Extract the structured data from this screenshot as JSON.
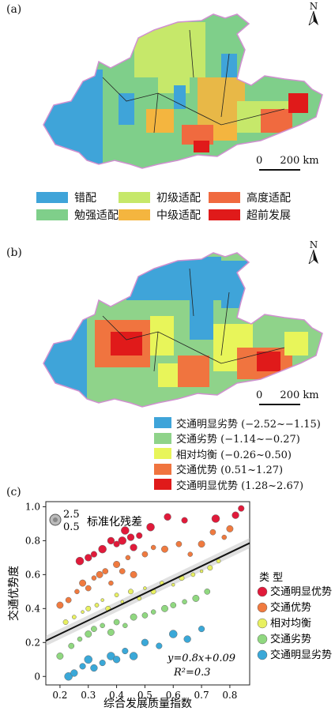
{
  "panel_a": {
    "label": "(a)",
    "north": "N",
    "scale": {
      "zero": "0",
      "text": "200 km"
    },
    "legend": [
      {
        "label": "错配",
        "color": "#3fa4d9"
      },
      {
        "label": "初级适配",
        "color": "#c6e86a"
      },
      {
        "label": "高度适配",
        "color": "#f06a3f"
      },
      {
        "label": "勉强适配",
        "color": "#7fcf8a"
      },
      {
        "label": "中级适配",
        "color": "#f4b53f"
      },
      {
        "label": "超前发展",
        "color": "#e01a1a"
      }
    ]
  },
  "panel_b": {
    "label": "(b)",
    "north": "N",
    "scale": {
      "zero": "0",
      "text": "200 km"
    },
    "legend": [
      {
        "label": "交通明显劣势 (−2.52~−1.15)",
        "color": "#3fa4d9"
      },
      {
        "label": "交通劣势 (−1.14~−0.27)",
        "color": "#8fd38a"
      },
      {
        "label": "相对均衡 (−0.26~0.50)",
        "color": "#e8f55a"
      },
      {
        "label": "交通优势 (0.51~1.27)",
        "color": "#f0743f"
      },
      {
        "label": "交通明显优势 (1.28~2.67)",
        "color": "#e01a1a"
      }
    ]
  },
  "panel_c": {
    "label": "(c)",
    "size_legend": {
      "big": "2.5",
      "small": "0.5",
      "title": "标准化残差"
    },
    "equation": "y=0.8x+0.09",
    "r2": "R²=0.3",
    "legend_title": "类  型",
    "legend": [
      {
        "label": "交通明显优势",
        "color": "#e01a3a"
      },
      {
        "label": "交通优势",
        "color": "#f07a3f"
      },
      {
        "label": "相对均衡",
        "color": "#e8f060"
      },
      {
        "label": "交通劣势",
        "color": "#90d880"
      },
      {
        "label": "交通明显劣势",
        "color": "#3aa8d8"
      }
    ]
  },
  "chart_data": {
    "type": "scatter",
    "xlabel": "综合发展质量指数",
    "ylabel": "交通优势度",
    "xlim": [
      0.15,
      0.87
    ],
    "ylim": [
      -0.05,
      1.03
    ],
    "xticks": [
      "0.2",
      "0.3",
      "0.4",
      "0.5",
      "0.6",
      "0.7",
      "0.8"
    ],
    "yticks": [
      "0",
      "0.2",
      "0.4",
      "0.6",
      "0.8",
      "1.0"
    ],
    "regression": {
      "slope": 0.8,
      "intercept": 0.09
    },
    "series": [
      {
        "name": "交通明显优势",
        "color": "#e01a3a",
        "x": [
          0.27,
          0.3,
          0.32,
          0.35,
          0.38,
          0.4,
          0.42,
          0.45,
          0.48,
          0.52,
          0.58,
          0.64,
          0.75,
          0.82,
          0.84,
          0.43,
          0.46
        ],
        "y": [
          0.68,
          0.7,
          0.72,
          0.75,
          0.8,
          0.78,
          0.8,
          0.82,
          0.83,
          0.88,
          0.94,
          0.92,
          0.93,
          0.95,
          0.99,
          0.86,
          0.76
        ]
      },
      {
        "name": "交通优势",
        "color": "#f07a3f",
        "x": [
          0.2,
          0.23,
          0.26,
          0.28,
          0.3,
          0.32,
          0.34,
          0.36,
          0.38,
          0.4,
          0.42,
          0.44,
          0.46,
          0.5,
          0.53,
          0.57,
          0.62,
          0.66,
          0.7,
          0.74,
          0.78,
          0.8
        ],
        "y": [
          0.42,
          0.45,
          0.5,
          0.55,
          0.52,
          0.58,
          0.6,
          0.62,
          0.55,
          0.66,
          0.62,
          0.7,
          0.6,
          0.72,
          0.76,
          0.75,
          0.78,
          0.72,
          0.78,
          0.85,
          0.82,
          0.87
        ]
      },
      {
        "name": "相对均衡",
        "color": "#e8f060",
        "x": [
          0.22,
          0.25,
          0.28,
          0.3,
          0.33,
          0.35,
          0.37,
          0.4,
          0.42,
          0.45,
          0.48,
          0.5,
          0.53,
          0.56,
          0.6,
          0.63,
          0.67,
          0.7,
          0.73,
          0.76
        ],
        "y": [
          0.32,
          0.35,
          0.38,
          0.4,
          0.42,
          0.45,
          0.4,
          0.48,
          0.44,
          0.5,
          0.46,
          0.52,
          0.5,
          0.55,
          0.54,
          0.58,
          0.6,
          0.62,
          0.64,
          0.68
        ]
      },
      {
        "name": "交通劣势",
        "color": "#90d880",
        "x": [
          0.2,
          0.24,
          0.27,
          0.3,
          0.32,
          0.35,
          0.38,
          0.4,
          0.43,
          0.46,
          0.5,
          0.53,
          0.57,
          0.6,
          0.64,
          0.68,
          0.72
        ],
        "y": [
          0.12,
          0.18,
          0.22,
          0.25,
          0.28,
          0.3,
          0.26,
          0.32,
          0.3,
          0.35,
          0.36,
          0.38,
          0.4,
          0.42,
          0.44,
          0.46,
          0.5
        ]
      },
      {
        "name": "交通明显劣势",
        "color": "#3aa8d8",
        "x": [
          0.23,
          0.25,
          0.28,
          0.3,
          0.32,
          0.35,
          0.38,
          0.4,
          0.43,
          0.46,
          0.5,
          0.55,
          0.6,
          0.65,
          0.7
        ],
        "y": [
          0.0,
          0.02,
          0.06,
          0.1,
          0.05,
          0.08,
          0.12,
          0.1,
          0.15,
          0.12,
          0.2,
          0.18,
          0.25,
          0.22,
          0.28
        ]
      }
    ]
  }
}
